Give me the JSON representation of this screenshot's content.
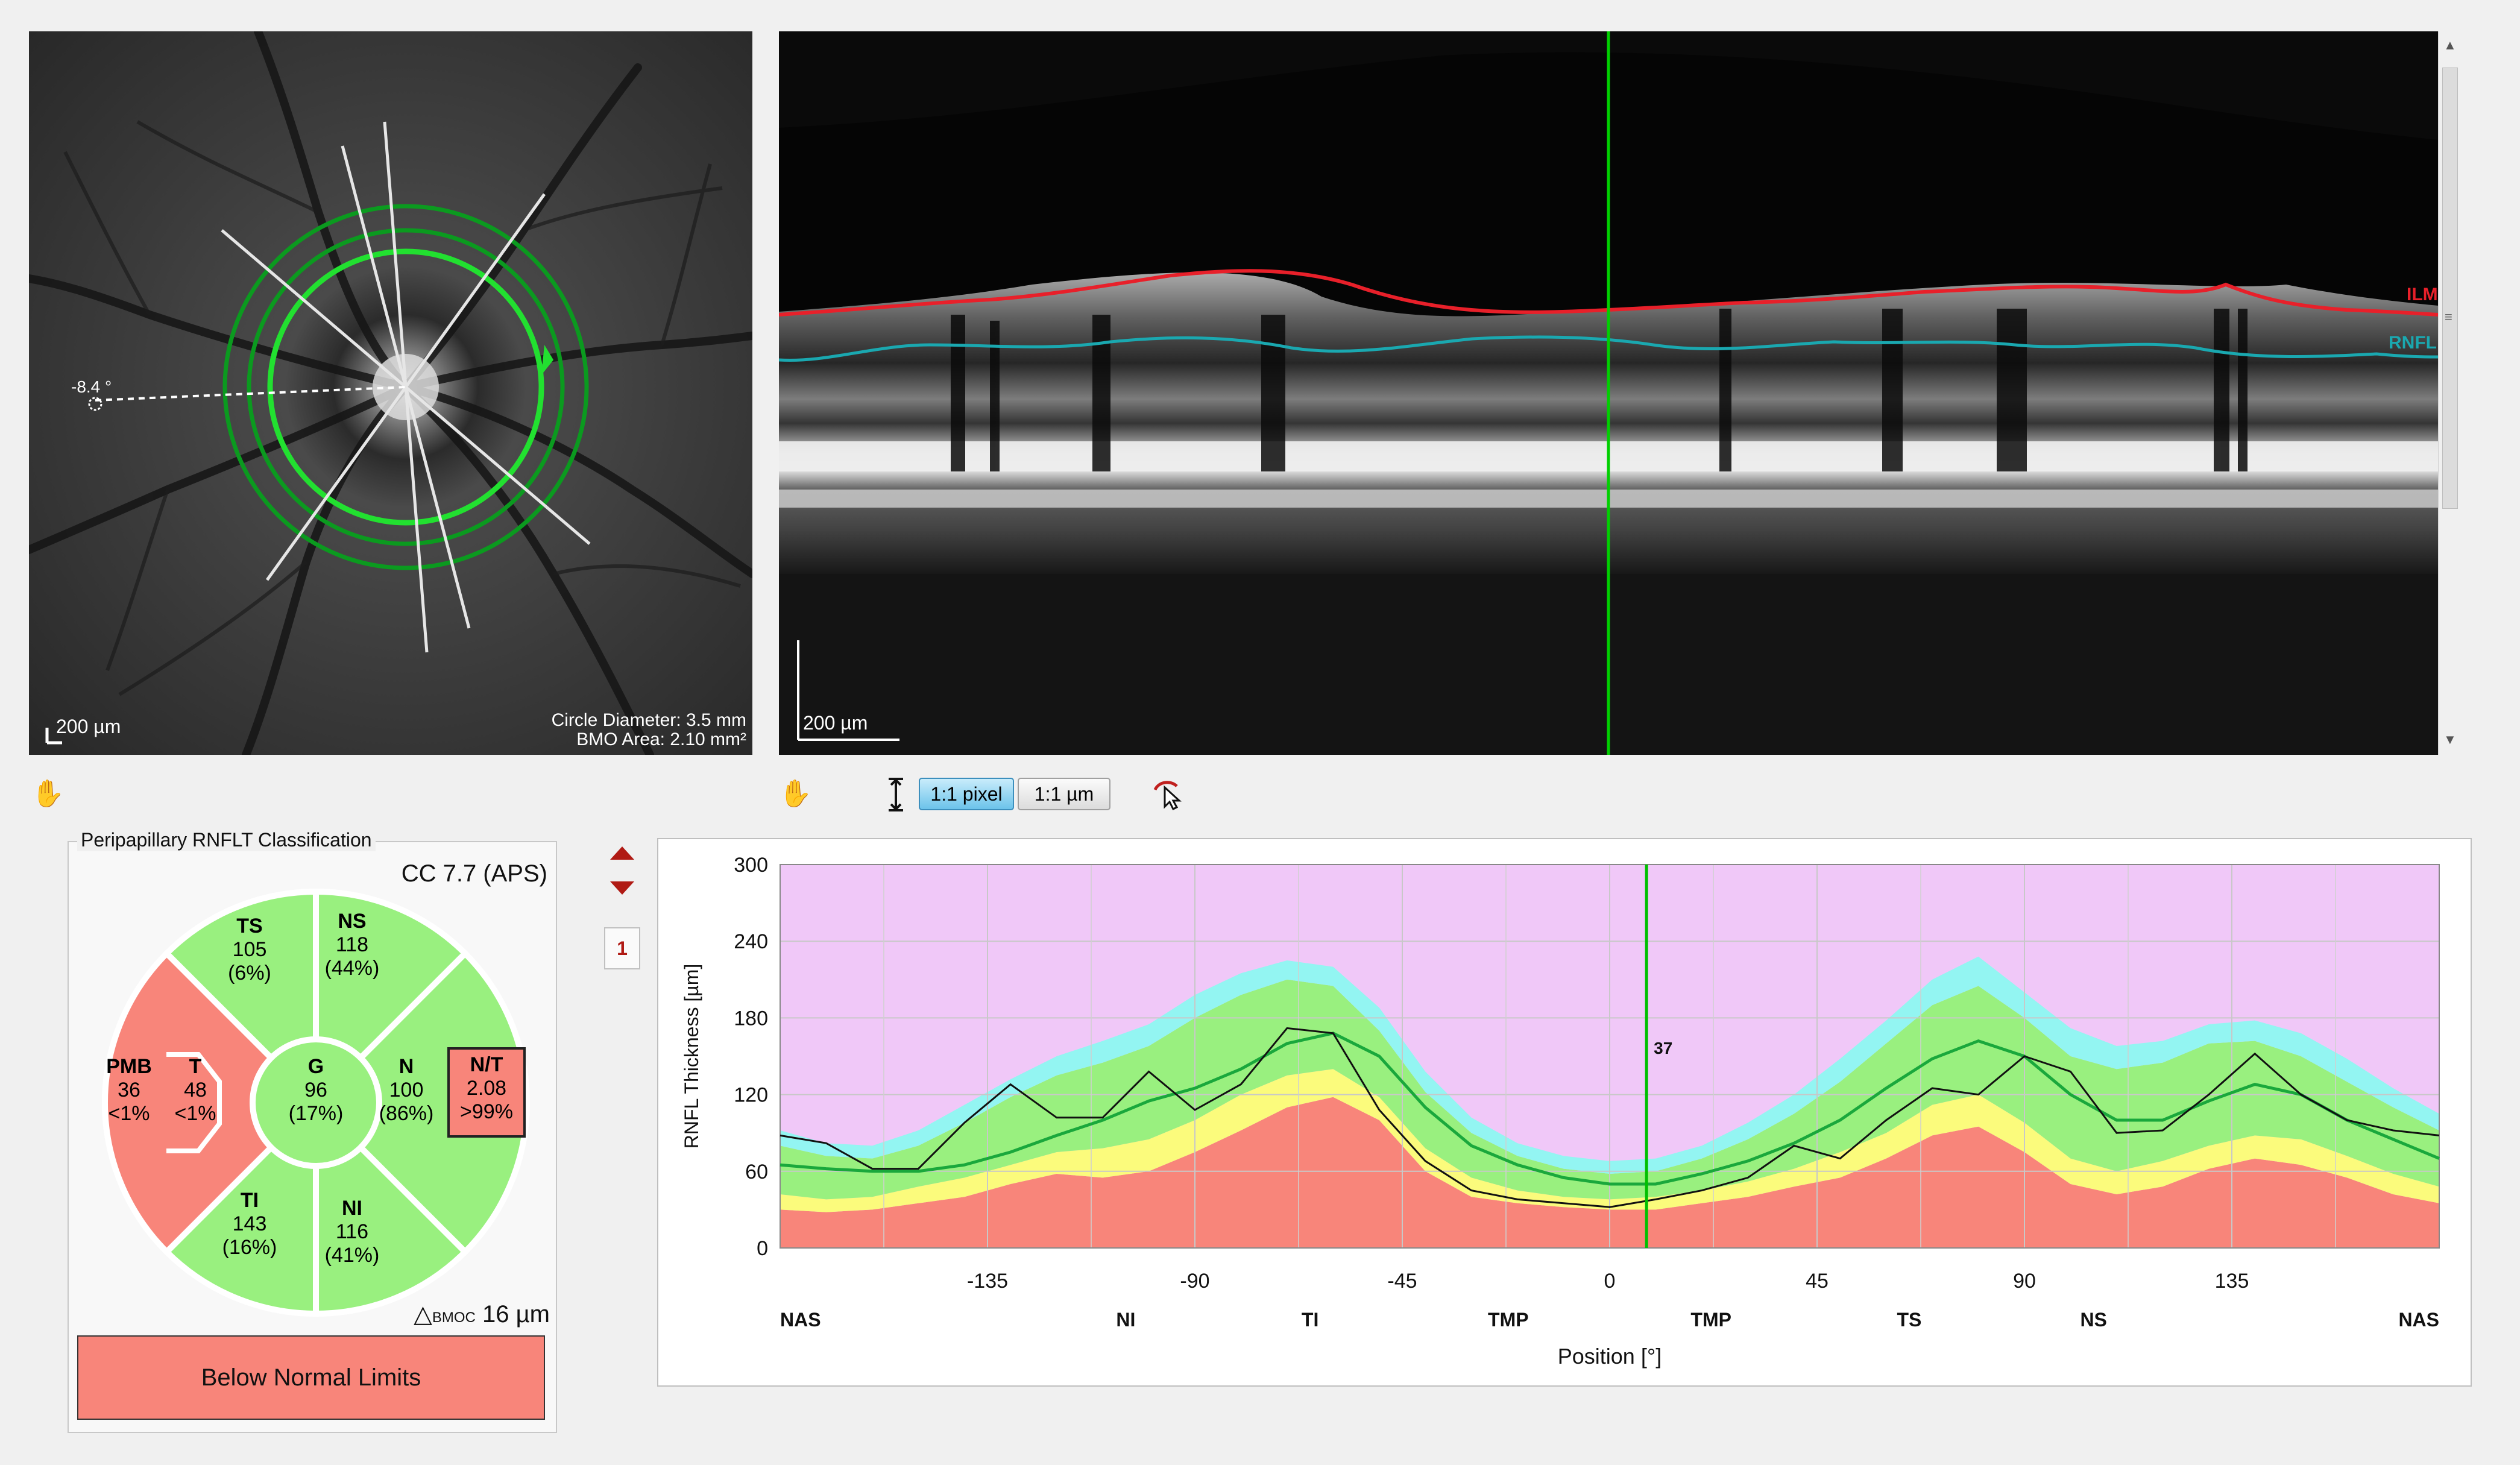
{
  "fundus": {
    "angle_label": "-8.4 °",
    "scale_label": "200 µm",
    "circle_diameter": "Circle Diameter: 3.5 mm",
    "bmo_area": "BMO Area: 2.10 mm²"
  },
  "bscan": {
    "scale_label": "200 µm",
    "ilm_label": "ILM",
    "rnfl_label": "RNFL",
    "layer_colors": {
      "ilm": "#e8202a",
      "rnfl": "#1aa8b0",
      "cursor": "#00d000"
    }
  },
  "toolbar": {
    "pixel_button": "1:1 pixel",
    "micron_button": "1:1 µm",
    "icons": [
      "hand-icon",
      "fit-height-icon",
      "pointer-icon"
    ]
  },
  "classification": {
    "title": "Peripapillary RNFLT Classification",
    "cc_label": "CC 7.7 (APS)",
    "sectors": {
      "TS": {
        "name": "TS",
        "value": "105",
        "pct": "(6%)"
      },
      "NS": {
        "name": "NS",
        "value": "118",
        "pct": "(44%)"
      },
      "T": {
        "name": "T",
        "value": "48",
        "pct": "<1%"
      },
      "PMB": {
        "name": "PMB",
        "value": "36",
        "pct": "<1%"
      },
      "G": {
        "name": "G",
        "value": "96",
        "pct": "(17%)"
      },
      "N": {
        "name": "N",
        "value": "100",
        "pct": "(86%)"
      },
      "NT": {
        "name": "N/T",
        "value": "2.08",
        "pct": ">99%"
      },
      "TI": {
        "name": "TI",
        "value": "143",
        "pct": "(16%)"
      },
      "NI": {
        "name": "NI",
        "value": "116",
        "pct": "(41%)"
      }
    },
    "bmoc_prefix": "△",
    "bmoc_sub": "BMOC",
    "bmoc_value": "16 µm",
    "result": "Below Normal Limits",
    "colors": {
      "normal": "#99f07f",
      "outside": "#f8857a"
    }
  },
  "graph_controls": {
    "page_number": "1"
  },
  "chart_data": {
    "type": "line",
    "ylabel": "RNFL Thickness  [µm]",
    "xlabel": "Position [°]",
    "ylim": [
      0,
      300
    ],
    "xlim": [
      -180,
      180
    ],
    "y_ticks": [
      "300",
      "240",
      "180",
      "120",
      "60",
      "0"
    ],
    "x_ticks": [
      {
        "value": -135,
        "label": "-135"
      },
      {
        "value": -90,
        "label": "-90"
      },
      {
        "value": -45,
        "label": "-45"
      },
      {
        "value": 0,
        "label": "0"
      },
      {
        "value": 45,
        "label": "45"
      },
      {
        "value": 90,
        "label": "90"
      },
      {
        "value": 135,
        "label": "135"
      }
    ],
    "sector_labels": [
      {
        "value": -176,
        "label": "NAS"
      },
      {
        "value": -105,
        "label": "NI"
      },
      {
        "value": -65,
        "label": "TI"
      },
      {
        "value": -22,
        "label": "TMP"
      },
      {
        "value": 22,
        "label": "TMP"
      },
      {
        "value": 65,
        "label": "TS"
      },
      {
        "value": 105,
        "label": "NS"
      },
      {
        "value": 176,
        "label": "NAS"
      }
    ],
    "cursor": {
      "x": 8,
      "label": "37"
    },
    "x": [
      -180,
      -170,
      -160,
      -150,
      -140,
      -130,
      -120,
      -110,
      -100,
      -90,
      -80,
      -70,
      -60,
      -50,
      -40,
      -30,
      -20,
      -10,
      0,
      10,
      20,
      30,
      40,
      50,
      60,
      70,
      80,
      90,
      100,
      110,
      120,
      130,
      140,
      150,
      160,
      170,
      180
    ],
    "bands": {
      "p1": [
        30,
        28,
        30,
        35,
        40,
        50,
        58,
        55,
        60,
        75,
        92,
        110,
        118,
        100,
        60,
        40,
        35,
        32,
        30,
        30,
        35,
        40,
        48,
        55,
        70,
        88,
        95,
        75,
        50,
        42,
        48,
        62,
        70,
        65,
        55,
        42,
        35
      ],
      "p5": [
        42,
        38,
        40,
        48,
        55,
        65,
        75,
        78,
        85,
        100,
        120,
        135,
        140,
        118,
        78,
        55,
        45,
        40,
        38,
        40,
        45,
        52,
        62,
        75,
        90,
        112,
        120,
        98,
        70,
        60,
        68,
        80,
        88,
        85,
        72,
        58,
        48
      ],
      "p95": [
        80,
        72,
        70,
        80,
        98,
        118,
        135,
        145,
        158,
        180,
        198,
        210,
        205,
        170,
        122,
        90,
        72,
        62,
        58,
        60,
        70,
        85,
        105,
        130,
        160,
        190,
        205,
        180,
        150,
        140,
        145,
        160,
        162,
        150,
        130,
        110,
        92
      ],
      "p99": [
        92,
        82,
        80,
        92,
        112,
        132,
        150,
        162,
        175,
        198,
        215,
        225,
        220,
        188,
        138,
        102,
        82,
        72,
        68,
        70,
        80,
        98,
        120,
        148,
        178,
        210,
        228,
        200,
        172,
        158,
        162,
        175,
        178,
        168,
        148,
        125,
        105
      ]
    },
    "series": [
      {
        "values": [
          65,
          62,
          60,
          60,
          65,
          75,
          88,
          100,
          115,
          125,
          140,
          160,
          168,
          150,
          110,
          80,
          65,
          55,
          50,
          50,
          58,
          68,
          82,
          100,
          125,
          148,
          162,
          150,
          120,
          100,
          100,
          115,
          128,
          120,
          100,
          85,
          70
        ]
      },
      {
        "values": [
          88,
          82,
          62,
          62,
          98,
          128,
          102,
          102,
          138,
          108,
          128,
          172,
          168,
          108,
          68,
          45,
          38,
          35,
          32,
          38,
          45,
          55,
          80,
          70,
          100,
          125,
          120,
          150,
          138,
          90,
          92,
          120,
          152,
          120,
          100,
          92,
          88
        ]
      }
    ],
    "band_colors": {
      "outside": "#f8857a",
      "borderline": "#fbfb7c",
      "normal": "#99f07f",
      "above": "#93f5f2",
      "background": "#f0c8f8",
      "mean": "#1aa83c",
      "measured": "#111111"
    }
  }
}
